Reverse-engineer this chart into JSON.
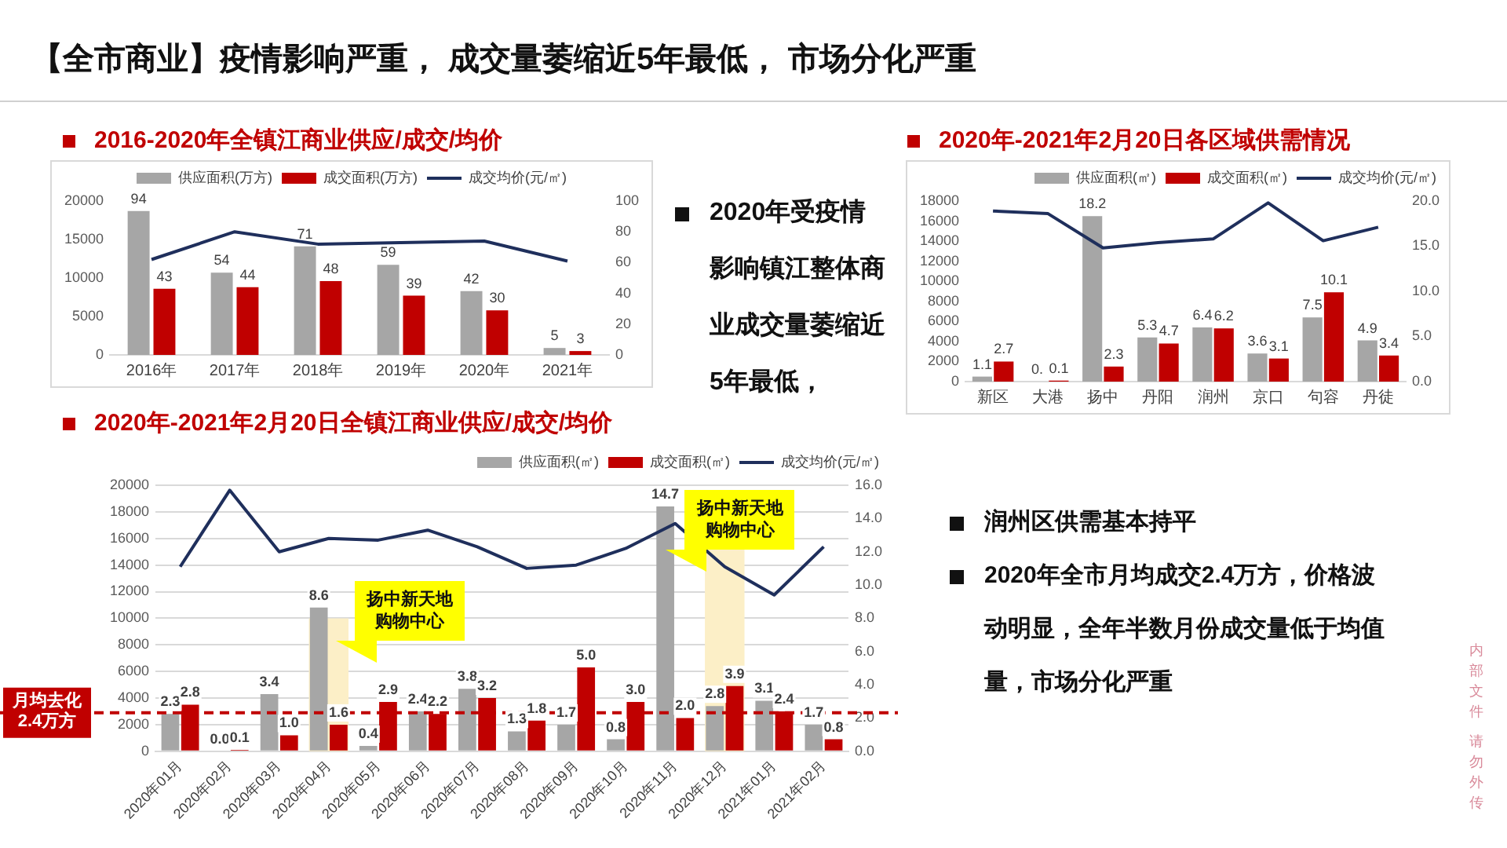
{
  "chart_data": [
    {
      "type": "other",
      "title": "【全市商业】疫情影响严重， 成交量萎缩近5年最低， 市场分化严重"
    },
    {
      "type": "bar",
      "title": "2016-2020年全镇江商业供应/成交/均价",
      "categories": [
        "2016年",
        "2017年",
        "2018年",
        "2019年",
        "2020年",
        "2021年"
      ],
      "series": [
        {
          "name": "供应面积(万方)",
          "type": "bar",
          "color": "#a6a6a6",
          "values": [
            18700,
            10700,
            14100,
            11700,
            8300,
            900
          ]
        },
        {
          "name": "成交面积(万方)",
          "type": "bar",
          "color": "#c00000",
          "values": [
            8600,
            8800,
            9600,
            7700,
            5800,
            500
          ]
        },
        {
          "name": "成交均价(元/㎡)",
          "type": "line",
          "axis": "y2",
          "color": "#1f2f5c",
          "values": [
            62,
            80,
            72,
            73,
            74,
            61
          ]
        }
      ],
      "ylim": [
        0,
        20000
      ],
      "yticks": [
        0,
        5000,
        10000,
        15000,
        20000
      ],
      "y2lim": [
        0,
        100
      ],
      "y2ticks": [
        0,
        20,
        40,
        60,
        80,
        100
      ],
      "legend": "top",
      "annotations": [
        {
          "text": "94",
          "x": "2016年",
          "y": 18700
        },
        {
          "text": "43",
          "x": "2016年",
          "y": 8600
        },
        {
          "text": "54",
          "x": "2017年",
          "y": 10700
        },
        {
          "text": "44",
          "x": "2017年",
          "y": 8800
        },
        {
          "text": "71",
          "x": "2018年",
          "y": 14100
        },
        {
          "text": "48",
          "x": "2018年",
          "y": 9600
        },
        {
          "text": "59",
          "x": "2019年",
          "y": 11700
        },
        {
          "text": "39",
          "x": "2019年",
          "y": 7700
        },
        {
          "text": "42",
          "x": "2020年",
          "y": 8300
        },
        {
          "text": "30",
          "x": "2020年",
          "y": 5800
        },
        {
          "text": "5",
          "x": "2021年",
          "y": 900
        },
        {
          "text": "3",
          "x": "2021年",
          "y": 500
        }
      ]
    },
    {
      "type": "other",
      "annotations": [
        "2020年受疫情影响镇江整体商业成交量萎缩近5年最低，"
      ]
    },
    {
      "type": "bar",
      "title": "2020年-2021年2月20日各区域供需情况",
      "categories": [
        "新区",
        "大港",
        "扬中",
        "丹阳",
        "润州",
        "京口",
        "句容",
        "丹徒"
      ],
      "series": [
        {
          "name": "供应面积(㎡)",
          "type": "bar",
          "color": "#a6a6a6",
          "values": [
            500,
            0,
            16500,
            4400,
            5400,
            2800,
            6400,
            4100
          ]
        },
        {
          "name": "成交面积(㎡)",
          "type": "bar",
          "color": "#c00000",
          "values": [
            2000,
            100,
            1500,
            3800,
            5300,
            2300,
            8900,
            2600
          ]
        },
        {
          "name": "成交均价(元/㎡)",
          "type": "line",
          "axis": "y2",
          "color": "#1f2f5c",
          "values": [
            18.9,
            18.6,
            14.8,
            15.4,
            15.8,
            19.8,
            15.6,
            17.1
          ]
        }
      ],
      "ylim": [
        0,
        18000
      ],
      "yticks": [
        0,
        2000,
        4000,
        6000,
        8000,
        10000,
        12000,
        14000,
        16000,
        18000
      ],
      "y2lim": [
        0,
        20
      ],
      "y2ticks": [
        {
          "value": 0,
          "label": "0.0"
        },
        {
          "value": 5,
          "label": "5.0"
        },
        {
          "value": 10,
          "label": "10.0"
        },
        {
          "value": 15,
          "label": "15.0"
        },
        {
          "value": 20,
          "label": "20.0"
        }
      ],
      "legend": "top right",
      "annotations": [
        {
          "text": "1.1",
          "x": "新区",
          "y": 500
        },
        {
          "text": "2.7",
          "x": "新区",
          "y": 2000
        },
        {
          "text": "0.",
          "x": "大港",
          "y": 0
        },
        {
          "text": "0.1",
          "x": "大港",
          "y": 100
        },
        {
          "text": "18.2",
          "x": "扬中",
          "y": 16500
        },
        {
          "text": "2.3",
          "x": "扬中",
          "y": 1500
        },
        {
          "text": "5.3",
          "x": "丹阳",
          "y": 4400
        },
        {
          "text": "4.7",
          "x": "丹阳",
          "y": 3800
        },
        {
          "text": "6.4",
          "x": "润州",
          "y": 5400
        },
        {
          "text": "6.2",
          "x": "润州",
          "y": 5300
        },
        {
          "text": "3.6",
          "x": "京口",
          "y": 2800
        },
        {
          "text": "3.1",
          "x": "京口",
          "y": 2300
        },
        {
          "text": "7.5",
          "x": "句容",
          "y": 6400
        },
        {
          "text": "10.1",
          "x": "句容",
          "y": 8900
        },
        {
          "text": "4.9",
          "x": "丹徒",
          "y": 4100
        },
        {
          "text": "3.4",
          "x": "丹徒",
          "y": 2600
        }
      ]
    },
    {
      "type": "bar",
      "title": "2020年-2021年2月20日全镇江商业供应/成交/均价",
      "categories": [
        "2020年01月",
        "2020年02月",
        "2020年03月",
        "2020年04月",
        "2020年05月",
        "2020年06月",
        "2020年07月",
        "2020年08月",
        "2020年09月",
        "2020年10月",
        "2020年11月",
        "2020年12月",
        "2021年01月",
        "2021年02月"
      ],
      "series": [
        {
          "name": "供应面积(㎡)",
          "type": "bar",
          "color": "#a6a6a6",
          "values": [
            2800,
            0,
            4300,
            10800,
            400,
            3000,
            4700,
            1500,
            2000,
            900,
            18400,
            3400,
            3800,
            2000
          ]
        },
        {
          "name": "成交面积(㎡)",
          "type": "bar",
          "color": "#c00000",
          "values": [
            3500,
            100,
            1200,
            2000,
            3700,
            2800,
            4000,
            2300,
            6300,
            3700,
            2500,
            4900,
            3000,
            900
          ]
        },
        {
          "name": "成交均价(元/㎡)",
          "type": "line",
          "axis": "y2",
          "color": "#1f2f5c",
          "values": [
            11.1,
            15.7,
            12.0,
            12.8,
            12.7,
            13.3,
            12.3,
            11.0,
            11.2,
            12.2,
            13.7,
            11.1,
            9.4,
            12.3
          ]
        }
      ],
      "ylim": [
        0,
        20000
      ],
      "yticks": [
        0,
        2000,
        4000,
        6000,
        8000,
        10000,
        12000,
        14000,
        16000,
        18000,
        20000
      ],
      "y2lim": [
        0,
        16
      ],
      "y2ticks": [
        {
          "value": 0,
          "label": "0.0"
        },
        {
          "value": 2,
          "label": "2.0"
        },
        {
          "value": 4,
          "label": "4.0"
        },
        {
          "value": 6,
          "label": "6.0"
        },
        {
          "value": 8,
          "label": "8.0"
        },
        {
          "value": 10,
          "label": "10.0"
        },
        {
          "value": 12,
          "label": "12.0"
        },
        {
          "value": 14,
          "label": "14.0"
        },
        {
          "value": 16,
          "label": "16.0"
        }
      ],
      "grid": "y",
      "legend": "top right",
      "ref_lines": [
        {
          "axis": "y",
          "value": 2900,
          "label": "月均去化2.4万方",
          "color": "#c00000",
          "line_style": "dashed"
        }
      ],
      "bands": [
        {
          "axis": "x",
          "from": "2020年04月",
          "to": "2020年04月",
          "label": "扬中新天地购物中心",
          "color": "#fcefc7"
        },
        {
          "axis": "x",
          "from": "2020年12月",
          "to": "2020年12月",
          "label": "扬中新天地购物中心",
          "color": "#fcefc7"
        }
      ],
      "annotations": [
        {
          "text": "2.3",
          "x": "2020年01月",
          "y": 2800
        },
        {
          "text": "2.8",
          "x": "2020年01月",
          "y": 3500
        },
        {
          "text": "0.0",
          "x": "2020年02月",
          "y": 0
        },
        {
          "text": "0.1",
          "x": "2020年02月",
          "y": 100
        },
        {
          "text": "3.4",
          "x": "2020年03月",
          "y": 4300
        },
        {
          "text": "1.0",
          "x": "2020年03月",
          "y": 1200
        },
        {
          "text": "8.6",
          "x": "2020年04月",
          "y": 10800
        },
        {
          "text": "1.6",
          "x": "2020年04月",
          "y": 2000
        },
        {
          "text": "0.4",
          "x": "2020年05月",
          "y": 400
        },
        {
          "text": "2.9",
          "x": "2020年05月",
          "y": 3700
        },
        {
          "text": "2.4",
          "x": "2020年06月",
          "y": 3000
        },
        {
          "text": "2.2",
          "x": "2020年06月",
          "y": 2800
        },
        {
          "text": "3.8",
          "x": "2020年07月",
          "y": 4700
        },
        {
          "text": "3.2",
          "x": "2020年07月",
          "y": 4000
        },
        {
          "text": "1.3",
          "x": "2020年08月",
          "y": 1500
        },
        {
          "text": "1.8",
          "x": "2020年08月",
          "y": 2300
        },
        {
          "text": "1.7",
          "x": "2020年09月",
          "y": 2000
        },
        {
          "text": "5.0",
          "x": "2020年09月",
          "y": 6300
        },
        {
          "text": "0.8",
          "x": "2020年10月",
          "y": 900
        },
        {
          "text": "3.0",
          "x": "2020年10月",
          "y": 3700
        },
        {
          "text": "14.7",
          "x": "2020年11月",
          "y": 18400
        },
        {
          "text": "2.0",
          "x": "2020年11月",
          "y": 2500
        },
        {
          "text": "2.8",
          "x": "2020年12月",
          "y": 3400
        },
        {
          "text": "3.9",
          "x": "2020年12月",
          "y": 4900
        },
        {
          "text": "3.1",
          "x": "2021年01月",
          "y": 3800
        },
        {
          "text": "2.4",
          "x": "2021年01月",
          "y": 3000
        },
        {
          "text": "1.7",
          "x": "2021年02月",
          "y": 2000
        },
        {
          "text": "0.8",
          "x": "2021年02月",
          "y": 900
        }
      ]
    },
    {
      "type": "other",
      "annotations": [
        "润州区供需基本持平",
        "2020年全市月均成交2.4万方，价格波动明显，全年半数月份成交量低于均值量，市场分化严重"
      ]
    },
    {
      "type": "other",
      "annotations": [
        "内部文件",
        "请勿外传"
      ]
    }
  ]
}
